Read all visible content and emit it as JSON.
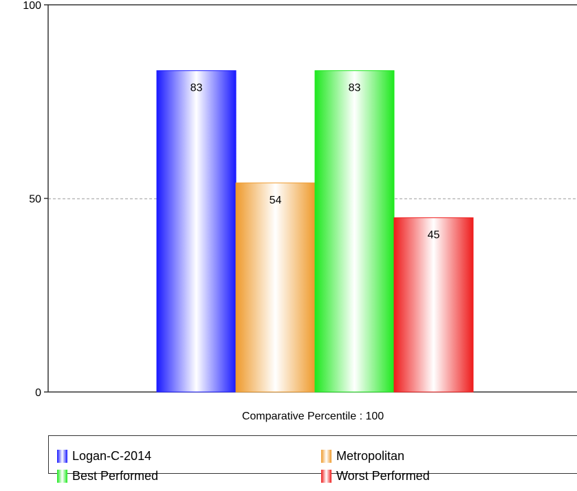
{
  "chart_data": {
    "type": "bar",
    "categories": [
      "Comparative Percentile : 100"
    ],
    "series": [
      {
        "name": "Logan-C-2014",
        "values": [
          83
        ],
        "color": "#1a1aff"
      },
      {
        "name": "Metropolitan",
        "values": [
          54
        ],
        "color": "#ee9a2c"
      },
      {
        "name": "Best Performed",
        "values": [
          83
        ],
        "color": "#1ee81e"
      },
      {
        "name": "Worst Performed",
        "values": [
          45
        ],
        "color": "#ee1c1c"
      }
    ],
    "ylim": [
      0,
      100
    ],
    "yticks": [
      "0",
      "50",
      "100"
    ],
    "grid": "horizontal dashed at 50",
    "legend": "bottom"
  }
}
